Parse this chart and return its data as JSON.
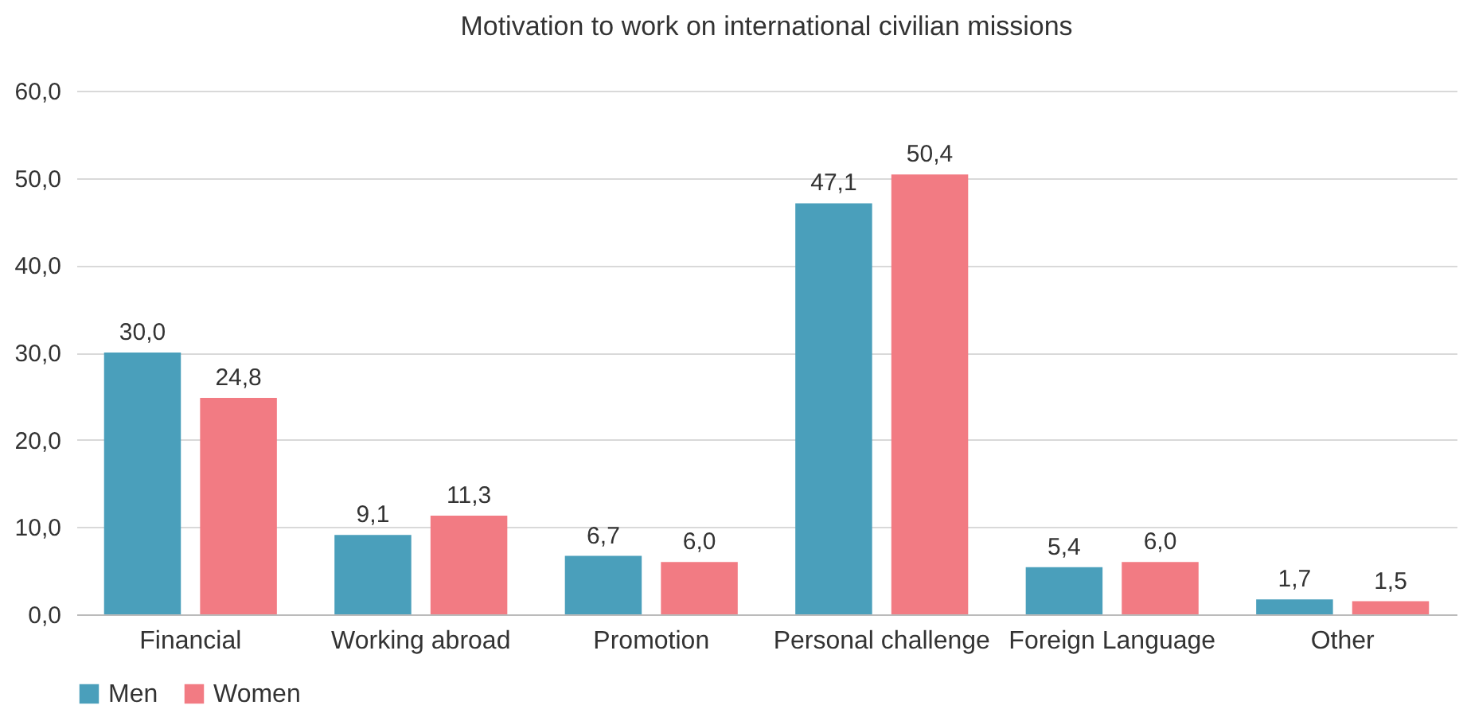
{
  "chart_data": {
    "type": "bar",
    "title": "Motivation to work on international civilian missions",
    "categories": [
      "Financial",
      "Working abroad",
      "Promotion",
      "Personal challenge",
      "Foreign Language",
      "Other"
    ],
    "series": [
      {
        "name": "Men",
        "color": "#4a9fbb",
        "values": [
          30.0,
          9.1,
          6.7,
          47.1,
          5.4,
          1.7
        ],
        "value_labels": [
          "30,0",
          "9,1",
          "6,7",
          "47,1",
          "5,4",
          "1,7"
        ]
      },
      {
        "name": "Women",
        "color": "#f27b83",
        "values": [
          24.8,
          11.3,
          6.0,
          50.4,
          6.0,
          1.5
        ],
        "value_labels": [
          "24,8",
          "11,3",
          "6,0",
          "50,4",
          "6,0",
          "1,5"
        ]
      }
    ],
    "ylim": [
      0,
      60
    ],
    "yticks": [
      {
        "value": 0,
        "label": "0,0"
      },
      {
        "value": 10,
        "label": "10,0"
      },
      {
        "value": 20,
        "label": "20,0"
      },
      {
        "value": 30,
        "label": "30,0"
      },
      {
        "value": 40,
        "label": "40,0"
      },
      {
        "value": 50,
        "label": "50,0"
      },
      {
        "value": 60,
        "label": "60,0"
      }
    ],
    "grid": "y",
    "legend": "bottom"
  }
}
